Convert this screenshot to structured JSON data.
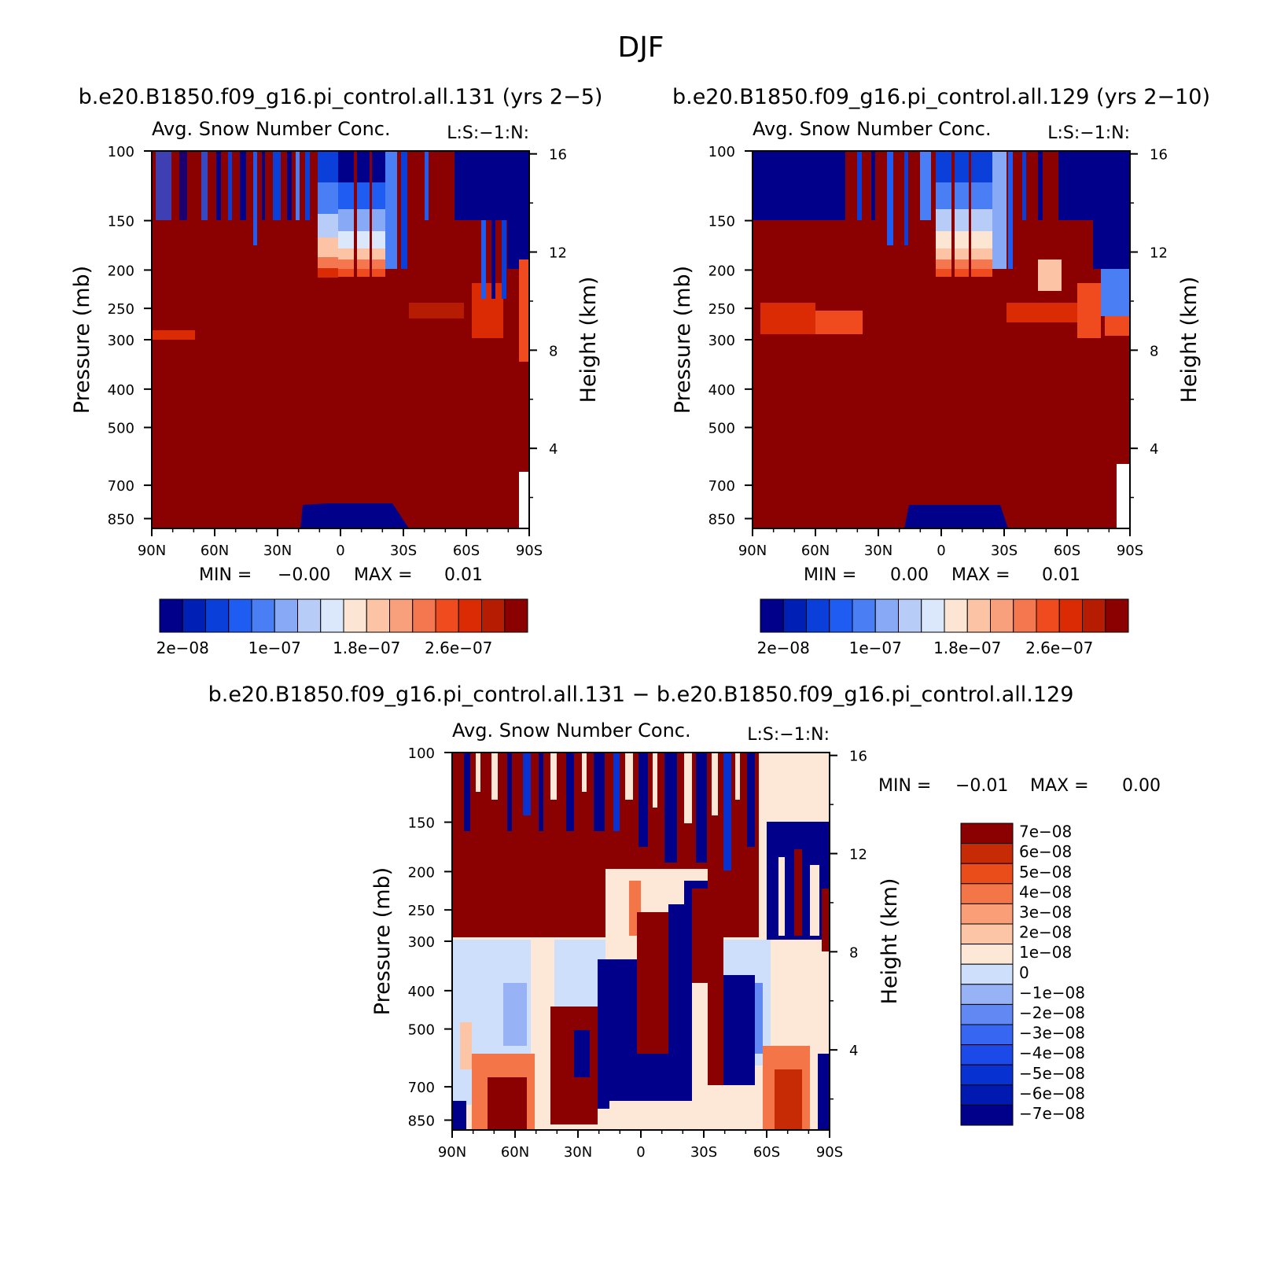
{
  "page_title": "DJF",
  "colors": {
    "dark_red": "#8b0000",
    "dark_blue": "#00008b",
    "abs_scale": [
      "#00008b",
      "#0020b5",
      "#0b3fd9",
      "#1f5df2",
      "#4a7ef5",
      "#88a9f5",
      "#b8ccf8",
      "#dbe8fb",
      "#fde5d3",
      "#fcc4a5",
      "#f89f7c",
      "#f4774f",
      "#ef4b1f",
      "#db2b05",
      "#b51c02",
      "#8b0000"
    ],
    "diff_scale": [
      "#00008b",
      "#0019b0",
      "#0731d0",
      "#1b4ae8",
      "#3766f2",
      "#6288f3",
      "#98b2f6",
      "#cddffa",
      "#fde8d8",
      "#fcc6a6",
      "#f99e76",
      "#f47648",
      "#ea4c1a",
      "#c72b06",
      "#8b0000"
    ]
  },
  "chart_data": [
    {
      "type": "heatmap",
      "panel": "top-left",
      "case_title": "b.e20.B1850.f09_g16.pi_control.all.131 (yrs 2−5)",
      "title": "Avg. Snow Number Conc.",
      "units_label": "L:S:−1:N:",
      "ylabel": "Pressure (mb)",
      "ylabel_right": "Height (km)",
      "x_ticks": [
        "90N",
        "60N",
        "30N",
        "0",
        "30S",
        "60S",
        "90S"
      ],
      "y_ticks": [
        "100",
        "150",
        "200",
        "250",
        "300",
        "400",
        "500",
        "700",
        "850"
      ],
      "y_ticks_right": [
        "16",
        "12",
        "8",
        "4"
      ],
      "min_label": "MIN =",
      "min_value": "−0.00",
      "max_label": "MAX =",
      "max_value": "0.01",
      "colorbar_labels": [
        "2e−08",
        "1e−07",
        "1.8e−07",
        "2.6e−07"
      ]
    },
    {
      "type": "heatmap",
      "panel": "top-right",
      "case_title": "b.e20.B1850.f09_g16.pi_control.all.129 (yrs 2−10)",
      "title": "Avg. Snow Number Conc.",
      "units_label": "L:S:−1:N:",
      "ylabel": "Pressure (mb)",
      "ylabel_right": "Height (km)",
      "x_ticks": [
        "90N",
        "60N",
        "30N",
        "0",
        "30S",
        "60S",
        "90S"
      ],
      "y_ticks": [
        "100",
        "150",
        "200",
        "250",
        "300",
        "400",
        "500",
        "700",
        "850"
      ],
      "y_ticks_right": [
        "16",
        "12",
        "8",
        "4"
      ],
      "min_label": "MIN =",
      "min_value": "0.00",
      "max_label": "MAX =",
      "max_value": "0.01",
      "colorbar_labels": [
        "2e−08",
        "1e−07",
        "1.8e−07",
        "2.6e−07"
      ]
    },
    {
      "type": "heatmap",
      "panel": "bottom-difference",
      "case_title": "b.e20.B1850.f09_g16.pi_control.all.131 − b.e20.B1850.f09_g16.pi_control.all.129",
      "title": "Avg. Snow Number Conc.",
      "units_label": "L:S:−1:N:",
      "ylabel": "Pressure (mb)",
      "ylabel_right": "Height (km)",
      "x_ticks": [
        "90N",
        "60N",
        "30N",
        "0",
        "30S",
        "60S",
        "90S"
      ],
      "y_ticks": [
        "100",
        "150",
        "200",
        "250",
        "300",
        "400",
        "500",
        "700",
        "850"
      ],
      "y_ticks_right": [
        "16",
        "12",
        "8",
        "4"
      ],
      "min_label": "MIN =",
      "min_value": "−0.01",
      "max_label": "MAX =",
      "max_value": "0.00",
      "colorbar_labels": [
        "7e−08",
        "6e−08",
        "5e−08",
        "4e−08",
        "3e−08",
        "2e−08",
        "1e−08",
        "0",
        "−1e−08",
        "−2e−08",
        "−3e−08",
        "−4e−08",
        "−5e−08",
        "−6e−08",
        "−7e−08"
      ]
    }
  ]
}
